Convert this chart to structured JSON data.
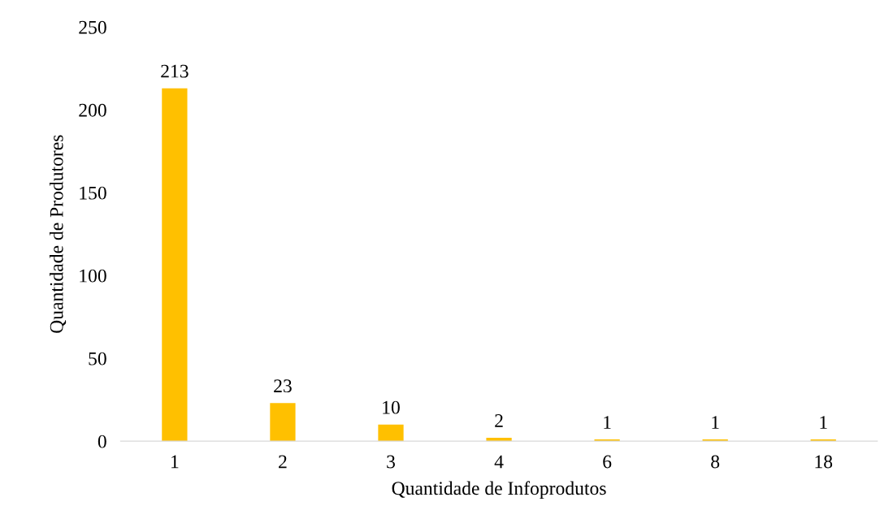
{
  "chart_data": {
    "type": "bar",
    "xlabel": "Quantidade de Infoprodutos",
    "ylabel": "Quantidade de Produtores",
    "categories": [
      "1",
      "2",
      "3",
      "4",
      "6",
      "8",
      "18"
    ],
    "values": [
      213,
      23,
      10,
      2,
      1,
      1,
      1
    ],
    "color": "#ffc000",
    "ylim": [
      0,
      250
    ],
    "yticks": [
      0,
      50,
      100,
      150,
      200,
      250
    ],
    "grid": false,
    "legend": false,
    "data_labels": true
  }
}
